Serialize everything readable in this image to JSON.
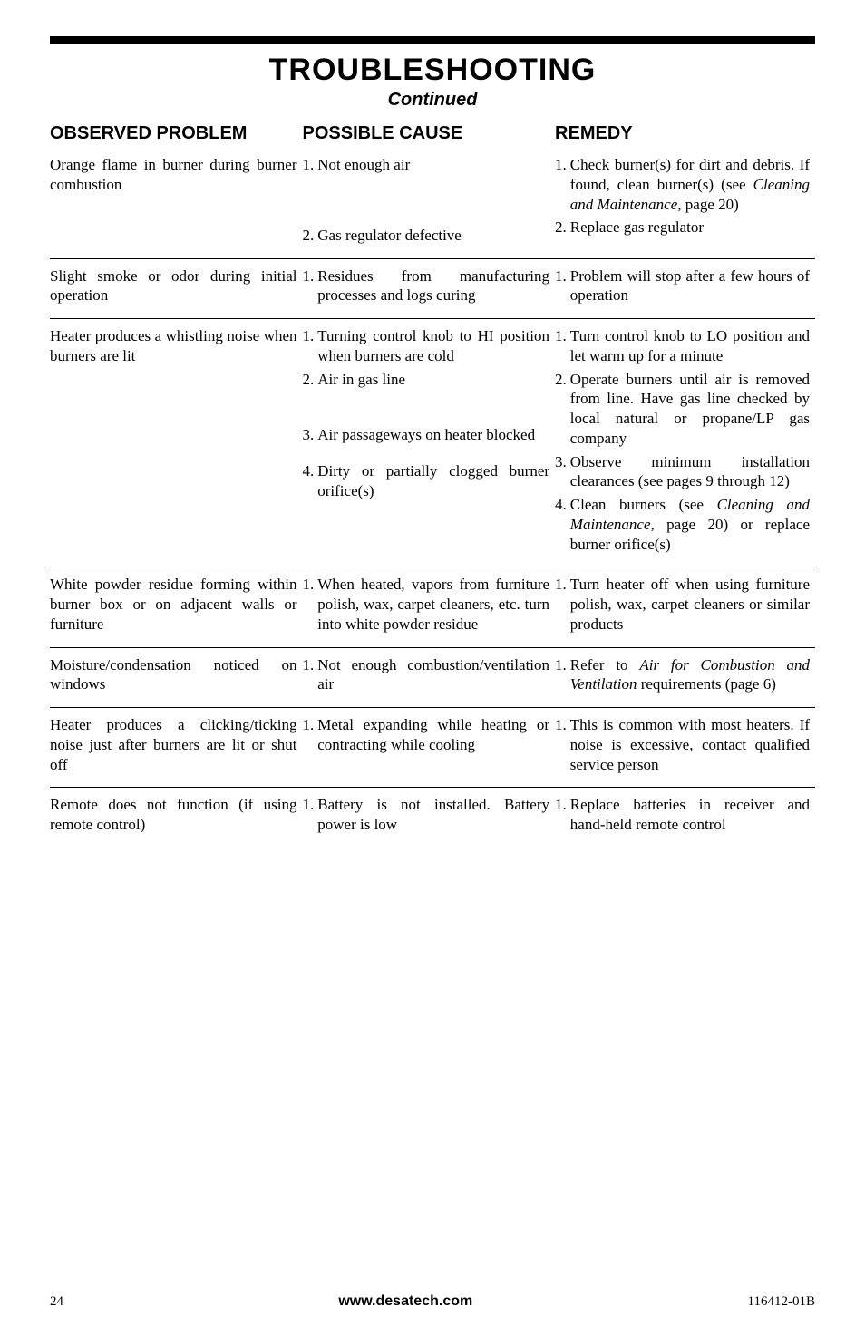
{
  "title": "TROUBLESHOOTING",
  "subtitle": "Continued",
  "headers": {
    "obs": "OBSERVED PROBLEM",
    "cause": "POSSIBLE CAUSE",
    "remedy": "REMEDY"
  },
  "rows": [
    {
      "obs": "Orange flame in burner during burner combustion",
      "causes": [
        {
          "n": "1.",
          "t": "Not enough air"
        },
        {
          "n": "2.",
          "t": "Gas regulator defective"
        }
      ],
      "remedies": [
        {
          "n": "1.",
          "t": "Check burner(s) for dirt and debris. If found, clean burner(s) (see <em>Cleaning and Maintenance</em>, page 20)"
        },
        {
          "n": "2.",
          "t": "Replace gas regulator"
        }
      ]
    },
    {
      "obs": "Slight smoke or odor during initial operation",
      "causes": [
        {
          "n": "1.",
          "t": "Residues from manufacturing processes and logs curing"
        }
      ],
      "remedies": [
        {
          "n": "1.",
          "t": "Problem will stop after a few hours of operation"
        }
      ]
    },
    {
      "obs": "Heater produces a whistling noise when burners are lit",
      "causes": [
        {
          "n": "1.",
          "t": "Turning control knob to HI position when burners are cold"
        },
        {
          "n": "2.",
          "t": "Air in gas line"
        },
        {
          "n": "3.",
          "t": "Air passageways on heater blocked"
        },
        {
          "n": "4.",
          "t": "Dirty or partially clogged burner orifice(s)"
        }
      ],
      "remedies": [
        {
          "n": "1.",
          "t": "Turn control knob to LO position and let warm up for a minute"
        },
        {
          "n": "2.",
          "t": "Operate burners until air is removed from line. Have gas line checked by local natural or propane/LP gas company"
        },
        {
          "n": "3.",
          "t": "Observe minimum instal­lation clearances (see pages 9 through 12)"
        },
        {
          "n": "4.",
          "t": "Clean burners (see <em>Cleaning and Maintenance</em>, page 20) or replace burner orifice(s)"
        }
      ]
    },
    {
      "obs": "White powder residue forming within burner box or on adjacent walls or furniture",
      "causes": [
        {
          "n": "1.",
          "t": "When heated, vapors from furniture polish, wax, carpet cleaners, etc. turn into white powder residue"
        }
      ],
      "remedies": [
        {
          "n": "1.",
          "t": "Turn heater off when using furniture polish, wax, carpet cleaners or similar products"
        }
      ]
    },
    {
      "obs": "Moisture/condensation noticed on windows",
      "causes": [
        {
          "n": "1.",
          "t": "Not enough combustion/venti­lation air"
        }
      ],
      "remedies": [
        {
          "n": "1.",
          "t": "Refer to <em>Air for Combustion and Ventilation</em> requirements (page 6)"
        }
      ]
    },
    {
      "obs": "Heater produces a clicking/tick­ing noise just after burners are lit or shut off",
      "causes": [
        {
          "n": "1.",
          "t": "Metal expanding while heating or contracting while cooling"
        }
      ],
      "remedies": [
        {
          "n": "1.",
          "t": "This is common with most heat­ers. If noise is excessive, contact qualified service person"
        }
      ]
    },
    {
      "obs": "Remote does not function (if using remote control)",
      "causes": [
        {
          "n": "1.",
          "t": "Battery is not installed. Bat­tery power is low"
        }
      ],
      "remedies": [
        {
          "n": "1.",
          "t": "Replace batteries in receiver and hand-held remote control"
        }
      ]
    }
  ],
  "footer": {
    "page": "24",
    "url": "www.desatech.com",
    "doc": "116412-01B"
  },
  "spacing": {
    "row0_cause_gap_after_0": "56px",
    "row2_cause_gap_after_1": "40px",
    "row2_cause_gap_after_2": "18px"
  }
}
